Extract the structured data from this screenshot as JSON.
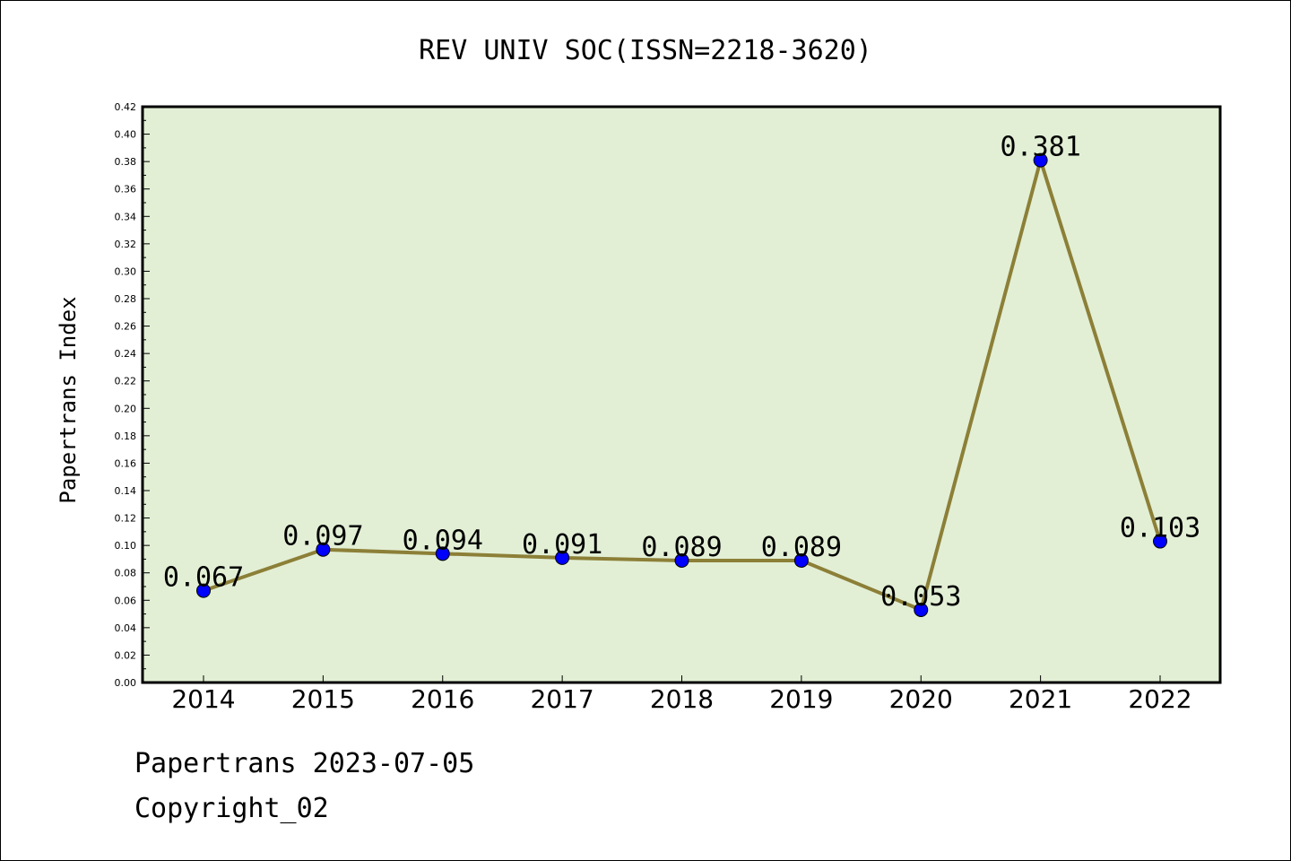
{
  "colors": {
    "plot_background": "#e2efd5",
    "line": "#8c7f37",
    "marker": "#0000ff",
    "frame": "#000000"
  },
  "chart_data": {
    "type": "line",
    "title": "REV UNIV SOC(ISSN=2218-3620)",
    "xlabel": "",
    "ylabel": "Papertrans Index",
    "categories": [
      "2014",
      "2015",
      "2016",
      "2017",
      "2018",
      "2019",
      "2020",
      "2021",
      "2022"
    ],
    "series": [
      {
        "values": [
          0.067,
          0.097,
          0.094,
          0.091,
          0.089,
          0.089,
          0.053,
          0.381,
          0.103
        ],
        "labels": [
          "0.067",
          "0.097",
          "0.094",
          "0.091",
          "0.089",
          "0.089",
          "0.053",
          "0.381",
          "0.103"
        ]
      }
    ],
    "ylim": [
      0,
      0.42
    ],
    "y_ticks": [
      "0.00",
      "0.02",
      "0.04",
      "0.06",
      "0.08",
      "0.10",
      "0.12",
      "0.14",
      "0.16",
      "0.18",
      "0.20",
      "0.22",
      "0.24",
      "0.26",
      "0.28",
      "0.30",
      "0.32",
      "0.34",
      "0.36",
      "0.38",
      "0.40",
      "0.42"
    ],
    "grid": false,
    "legend": "none"
  },
  "footer": {
    "line1": "Papertrans 2023-07-05",
    "line2": "Copyright_02"
  }
}
